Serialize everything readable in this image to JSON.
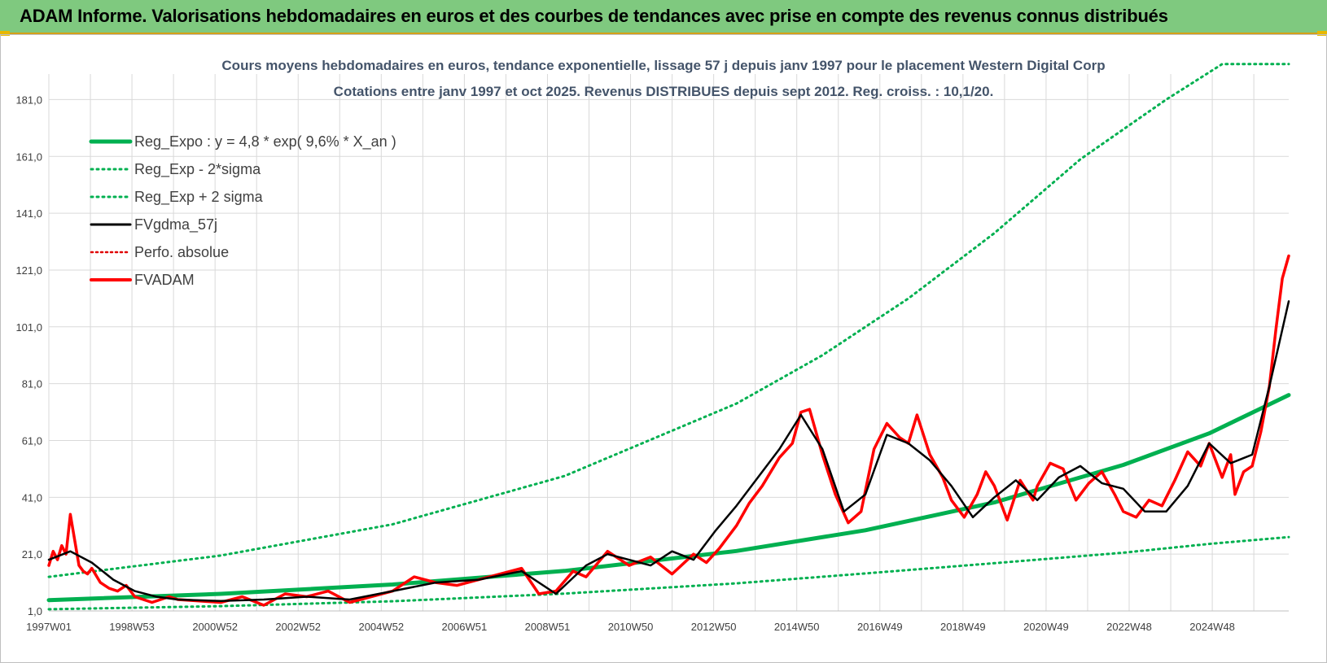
{
  "banner": {
    "title": "ADAM Informe. Valorisations hebdomadaires en euros et des courbes de tendances avec prise en compte des revenus connus distribués"
  },
  "colors": {
    "banner_bg": "#7fc97f",
    "reg_expo": "#00b050",
    "sigma": "#00b050",
    "fvgdma": "#000000",
    "perfo": "#e00000",
    "fvadam": "#ff0000",
    "grid": "#d9d9d9"
  },
  "chart_data": {
    "type": "line",
    "title": "Cours moyens hebdomadaires en euros, tendance exponentielle, lissage 57 j depuis janv 1997 pour le placement Western Digital Corp",
    "subtitle": "Cotations entre janv 1997 et oct 2025. Revenus DISTRIBUES depuis sept 2012. Reg. croiss. : 10,1/20.",
    "x_tick_labels": [
      "1997W01",
      "1998W53",
      "2000W52",
      "2002W52",
      "2004W52",
      "2006W51",
      "2008W51",
      "2010W50",
      "2012W50",
      "2014W50",
      "2016W49",
      "2018W49",
      "2020W49",
      "2022W48",
      "2024W48"
    ],
    "y_tick_labels": [
      "1,0",
      "21,0",
      "41,0",
      "61,0",
      "81,0",
      "101,0",
      "121,0",
      "141,0",
      "161,0",
      "181,0"
    ],
    "xlim_years": [
      1997.0,
      2025.85
    ],
    "ylim": [
      1.0,
      190.0
    ],
    "legend": [
      "Reg_Expo : y = 4,8 * exp( 9,6% *  X_an )",
      "Reg_Exp - 2*sigma",
      "Reg_Exp + 2 sigma",
      "FVgdma_57j",
      "Perfo. absolue",
      "FVADAM"
    ],
    "legend_placement": "top-left",
    "grid": true,
    "series": [
      {
        "name": "Reg_Expo : y = 4,8 * exp( 9,6% *  X_an )",
        "style": "solid-thick",
        "x": [
          1997.0,
          2001.0,
          2005.0,
          2009.0,
          2013.0,
          2016.0,
          2019.0,
          2022.0,
          2024.0,
          2025.85
        ],
        "y": [
          4.8,
          7.0,
          10.3,
          15.1,
          22.1,
          29.4,
          39.2,
          52.4,
          63.5,
          77.0
        ]
      },
      {
        "name": "Reg_Exp - 2*sigma",
        "style": "dotted",
        "x": [
          1997.0,
          2001.0,
          2005.0,
          2009.0,
          2013.0,
          2016.0,
          2019.0,
          2022.0,
          2024.0,
          2025.85
        ],
        "y": [
          1.6,
          2.7,
          4.4,
          7.1,
          10.7,
          14.2,
          17.8,
          21.5,
          24.6,
          27.0
        ]
      },
      {
        "name": "Reg_Exp + 2 sigma",
        "style": "dotted",
        "x": [
          1997.0,
          2001.0,
          2005.0,
          2009.0,
          2013.0,
          2015.0,
          2017.0,
          2019.0,
          2021.0,
          2023.0,
          2024.3,
          2025.0,
          2025.85
        ],
        "y": [
          13.0,
          20.5,
          31.5,
          48.5,
          74.0,
          91.0,
          111.0,
          134.0,
          160.0,
          181.0,
          197.0,
          197.0,
          197.0
        ]
      },
      {
        "name": "FVgdma_57j",
        "style": "solid",
        "x": [
          1997.0,
          1997.5,
          1998.0,
          1998.5,
          1999.0,
          1999.5,
          2000.0,
          2001.0,
          2002.0,
          2003.0,
          2004.0,
          2005.0,
          2006.0,
          2007.0,
          2008.0,
          2008.8,
          2009.5,
          2010.0,
          2011.0,
          2011.5,
          2012.0,
          2012.5,
          2013.0,
          2013.5,
          2014.0,
          2014.5,
          2015.0,
          2015.5,
          2016.0,
          2016.5,
          2017.0,
          2017.5,
          2018.0,
          2018.5,
          2019.0,
          2019.5,
          2020.0,
          2020.5,
          2021.0,
          2021.5,
          2022.0,
          2022.5,
          2023.0,
          2023.5,
          2024.0,
          2024.5,
          2025.0,
          2025.4,
          2025.85
        ],
        "y": [
          19,
          22,
          18,
          12,
          8,
          6,
          5,
          4.5,
          5,
          6,
          5,
          8,
          11,
          12,
          15,
          7,
          17,
          21,
          17,
          22,
          19,
          29,
          38,
          48,
          58,
          70,
          58,
          36,
          42,
          63,
          60,
          54,
          45,
          34,
          41,
          47,
          40,
          48,
          52,
          46,
          44,
          36,
          36,
          45,
          60,
          53,
          56,
          80,
          110
        ]
      },
      {
        "name": "Perfo. absolue",
        "style": "dotted",
        "x": [],
        "y": []
      },
      {
        "name": "FVADAM",
        "style": "solid-thick",
        "x": [
          1997.0,
          1997.1,
          1997.2,
          1997.3,
          1997.4,
          1997.5,
          1997.6,
          1997.7,
          1997.8,
          1997.9,
          1998.0,
          1998.2,
          1998.4,
          1998.6,
          1998.8,
          1999.0,
          1999.2,
          1999.4,
          1999.6,
          1999.8,
          2000.0,
          2000.5,
          2001.0,
          2001.5,
          2002.0,
          2002.5,
          2003.0,
          2003.5,
          2004.0,
          2004.5,
          2005.0,
          2005.5,
          2006.0,
          2006.5,
          2007.0,
          2007.5,
          2008.0,
          2008.4,
          2008.8,
          2009.2,
          2009.5,
          2010.0,
          2010.5,
          2011.0,
          2011.5,
          2012.0,
          2012.3,
          2012.6,
          2013.0,
          2013.3,
          2013.6,
          2014.0,
          2014.3,
          2014.5,
          2014.7,
          2015.0,
          2015.3,
          2015.6,
          2015.9,
          2016.2,
          2016.5,
          2016.8,
          2017.0,
          2017.2,
          2017.5,
          2017.8,
          2018.0,
          2018.3,
          2018.6,
          2018.8,
          2019.0,
          2019.3,
          2019.6,
          2019.9,
          2020.0,
          2020.3,
          2020.6,
          2020.9,
          2021.2,
          2021.5,
          2021.8,
          2022.0,
          2022.3,
          2022.6,
          2022.9,
          2023.2,
          2023.5,
          2023.8,
          2024.0,
          2024.3,
          2024.5,
          2024.6,
          2024.8,
          2025.0,
          2025.2,
          2025.4,
          2025.55,
          2025.7,
          2025.85
        ],
        "y": [
          17,
          22,
          19,
          24,
          21,
          35,
          26,
          17,
          15,
          14,
          16,
          11,
          9,
          8,
          10,
          6,
          5,
          4,
          5,
          6,
          5,
          4.5,
          4,
          6,
          3,
          7,
          6,
          8,
          4,
          6,
          8,
          13,
          11,
          10,
          12,
          14,
          16,
          7,
          8,
          15,
          13,
          22,
          17,
          20,
          14,
          21,
          18,
          23,
          31,
          39,
          45,
          55,
          60,
          71,
          72,
          56,
          42,
          32,
          36,
          58,
          67,
          62,
          60,
          70,
          56,
          48,
          40,
          34,
          42,
          50,
          45,
          33,
          47,
          40,
          45,
          53,
          51,
          40,
          46,
          50,
          42,
          36,
          34,
          40,
          38,
          47,
          57,
          52,
          60,
          48,
          56,
          42,
          50,
          52,
          64,
          80,
          100,
          118,
          126
        ]
      }
    ]
  }
}
